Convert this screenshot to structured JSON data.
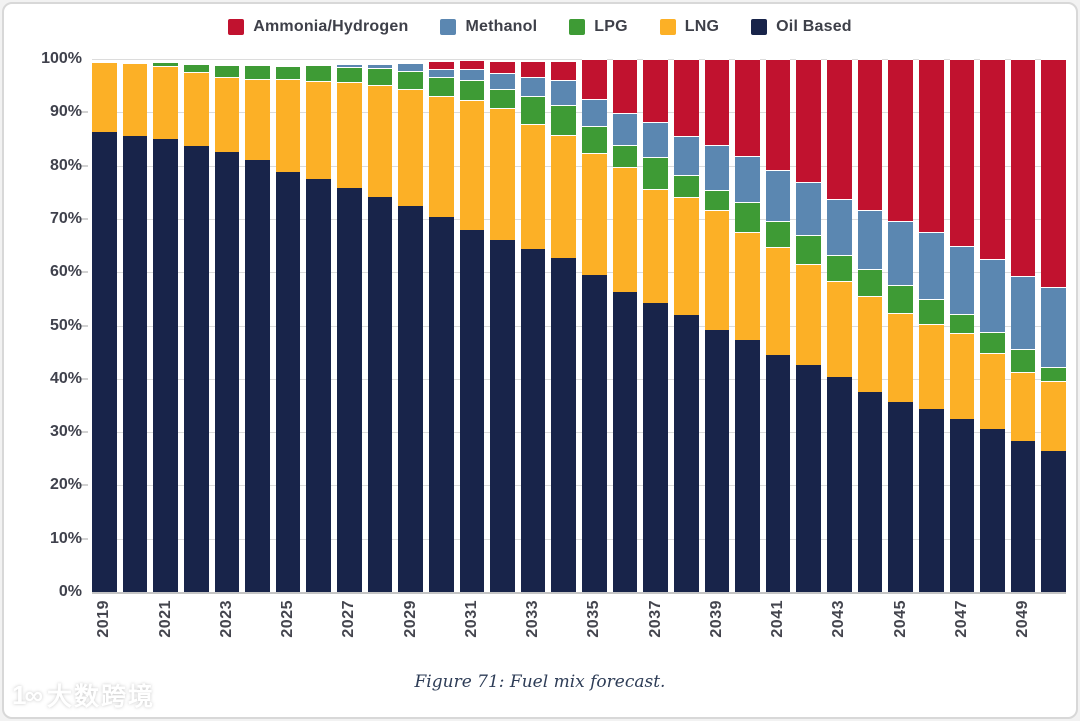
{
  "figure": {
    "caption": "Figure 71: Fuel mix forecast.",
    "watermark_text": "大数跨境",
    "watermark_logo": "1∞"
  },
  "colors": {
    "ammonia_hydrogen": "#c1122f",
    "methanol": "#5b87b1",
    "lpg": "#3e9b35",
    "lng": "#fcb026",
    "oil_based": "#18244a",
    "axis_text": "#3f414c",
    "gridline": "#dcdcdc"
  },
  "legend": [
    {
      "label": "Ammonia/Hydrogen",
      "color_key": "ammonia_hydrogen"
    },
    {
      "label": "Methanol",
      "color_key": "methanol"
    },
    {
      "label": "LPG",
      "color_key": "lpg"
    },
    {
      "label": "LNG",
      "color_key": "lng"
    },
    {
      "label": "Oil Based",
      "color_key": "oil_based"
    }
  ],
  "chart_data": {
    "type": "bar",
    "stacked": true,
    "title": "",
    "xlabel": "",
    "ylabel": "",
    "ylim": [
      0,
      100
    ],
    "y_ticks": [
      0,
      10,
      20,
      30,
      40,
      50,
      60,
      70,
      80,
      90,
      100
    ],
    "y_tick_labels": [
      "0%",
      "10%",
      "20%",
      "30%",
      "40%",
      "50%",
      "60%",
      "70%",
      "80%",
      "90%",
      "100%"
    ],
    "grid": true,
    "legend_position": "top-center",
    "categories": [
      2019,
      2020,
      2021,
      2022,
      2023,
      2024,
      2025,
      2026,
      2027,
      2028,
      2029,
      2030,
      2031,
      2032,
      2033,
      2034,
      2035,
      2036,
      2037,
      2038,
      2039,
      2040,
      2041,
      2042,
      2043,
      2044,
      2045,
      2046,
      2047,
      2048,
      2049,
      2050
    ],
    "x_tick_labels": [
      "2019",
      "2021",
      "2023",
      "2025",
      "2027",
      "2029",
      "2031",
      "2033",
      "2035",
      "2037",
      "2039",
      "2041",
      "2043",
      "2045",
      "2047",
      "2049"
    ],
    "x_tick_every": 2,
    "series": [
      {
        "name": "Oil Based",
        "color_key": "oil_based",
        "values": [
          86.3,
          85.6,
          84.9,
          83.6,
          82.5,
          81.0,
          78.8,
          77.4,
          75.8,
          74.1,
          72.4,
          70.4,
          68.0,
          66.1,
          64.4,
          62.6,
          59.4,
          56.3,
          54.2,
          52.0,
          49.2,
          47.2,
          44.4,
          42.5,
          40.3,
          37.6,
          35.6,
          34.3,
          32.5,
          30.6,
          28.3,
          26.4
        ]
      },
      {
        "name": "LNG",
        "color_key": "lng",
        "values": [
          13.2,
          13.6,
          13.7,
          13.9,
          14.2,
          15.3,
          17.4,
          18.5,
          19.8,
          21.1,
          22.0,
          22.6,
          24.4,
          24.7,
          23.5,
          23.2,
          22.9,
          23.5,
          21.5,
          22.1,
          22.4,
          20.3,
          20.3,
          19.0,
          18.1,
          17.9,
          16.8,
          15.9,
          16.1,
          14.2,
          13.0,
          13.1
        ]
      },
      {
        "name": "LPG",
        "color_key": "lpg",
        "values": [
          0,
          0.1,
          0.8,
          1.6,
          2.1,
          2.5,
          2.5,
          2.9,
          2.9,
          3.1,
          3.3,
          3.6,
          3.7,
          3.5,
          5.2,
          5.6,
          5.2,
          4.1,
          6.0,
          4.1,
          3.8,
          5.7,
          5.0,
          5.4,
          4.9,
          5.1,
          5.3,
          4.7,
          3.6,
          3.9,
          4.3,
          2.8
        ]
      },
      {
        "name": "Methanol",
        "color_key": "methanol",
        "values": [
          0,
          0,
          0,
          0,
          0,
          0,
          0,
          0,
          0.5,
          0.8,
          1.5,
          1.6,
          2.1,
          3.1,
          3.6,
          4.6,
          5.0,
          6.0,
          6.4,
          7.4,
          8.5,
          8.6,
          9.4,
          10.0,
          10.5,
          11.0,
          12.0,
          12.6,
          12.8,
          13.7,
          13.7,
          15.0
        ]
      },
      {
        "name": "Ammonia/Hydrogen",
        "color_key": "ammonia_hydrogen",
        "values": [
          0,
          0,
          0,
          0,
          0,
          0,
          0,
          0,
          0,
          0,
          0,
          1.4,
          1.6,
          2.2,
          2.9,
          3.7,
          7.5,
          10.1,
          11.9,
          14.4,
          16.1,
          18.2,
          20.9,
          23.1,
          26.2,
          28.4,
          30.3,
          32.5,
          35.0,
          37.6,
          40.7,
          42.7
        ]
      }
    ]
  }
}
